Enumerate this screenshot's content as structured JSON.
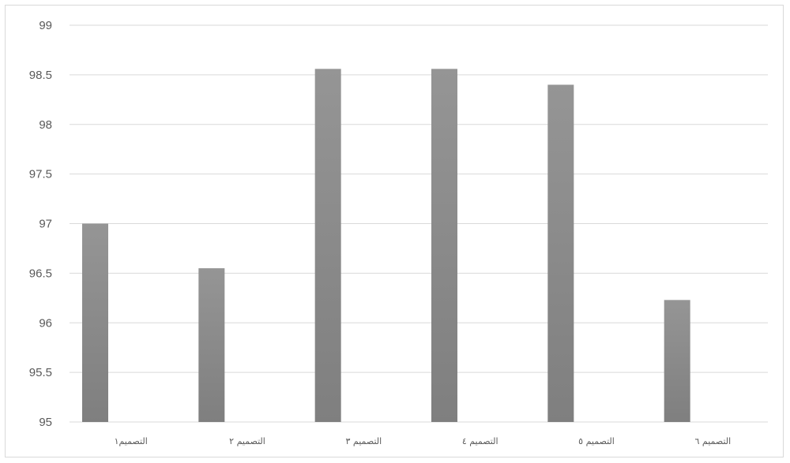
{
  "chart_data": {
    "type": "bar",
    "title": "",
    "xlabel": "",
    "ylabel": "",
    "categories": [
      "التصميم١",
      "التصميم ٢",
      "التصميم ٣",
      "التصميم ٤",
      "التصميم ٥",
      "التصميم ٦"
    ],
    "values": [
      97.0,
      96.55,
      98.56,
      98.56,
      98.4,
      96.23
    ],
    "ylim": [
      95,
      99
    ],
    "yticks": [
      "95",
      "95.5",
      "96",
      "96.5",
      "97",
      "97.5",
      "98",
      "98.5",
      "99"
    ],
    "grid": true,
    "legend": "none",
    "bar_color": "#7f7f7f",
    "bar_color_top": "#959595",
    "grid_color": "#d9d9d9"
  }
}
